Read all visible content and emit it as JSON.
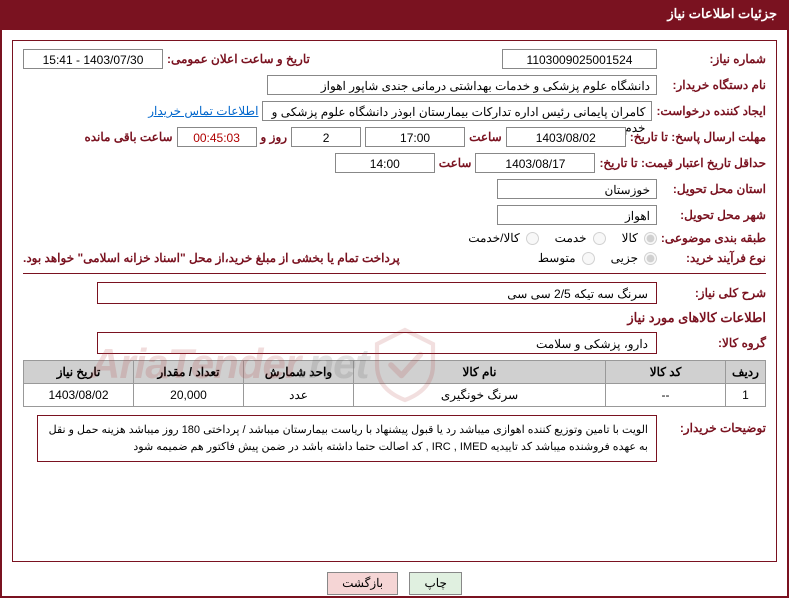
{
  "header": {
    "title": "جزئیات اطلاعات نیاز"
  },
  "labels": {
    "need_no": "شماره نیاز:",
    "announce_dt": "تاریخ و ساعت اعلان عمومی:",
    "buyer_org": "نام دستگاه خریدار:",
    "requester": "ایجاد کننده درخواست:",
    "reply_deadline": "مهلت ارسال پاسخ: تا تاریخ:",
    "time_lbl": "ساعت",
    "days_and": "روز و",
    "remaining": "ساعت باقی مانده",
    "validity": "حداقل تاریخ اعتبار قیمت: تا تاریخ:",
    "province": "استان محل تحویل:",
    "city": "شهر محل تحویل:",
    "subject_cat": "طبقه بندی موضوعی:",
    "buy_proc": "نوع فرآیند خرید:",
    "contact": "اطلاعات تماس خریدار",
    "overall_desc": "شرح کلی نیاز:",
    "items_section": "اطلاعات کالاهای مورد نیاز",
    "goods_group": "گروه کالا:",
    "buyer_notes": "توضیحات خریدار:"
  },
  "fields": {
    "need_no": "1103009025001524",
    "announce_dt": "1403/07/30 - 15:41",
    "buyer_org": "دانشگاه علوم پزشکی و خدمات بهداشتی درمانی جندی شاپور اهواز",
    "requester": "کامران پایمانی رئیس اداره تدارکات بیمارستان ابوذر  دانشگاه علوم پزشکی و خدم",
    "reply_date": "1403/08/02",
    "reply_time": "17:00",
    "remaining_days": "2",
    "remaining_time": "00:45:03",
    "validity_date": "1403/08/17",
    "validity_time": "14:00",
    "province": "خوزستان",
    "city": "اهواز",
    "overall_desc": "سرنگ سه تیکه 2/5 سی سی",
    "goods_group": "دارو، پزشکی و سلامت",
    "buyer_notes": "الویت با تامین وتوزیع کننده اهوازی  میباشد رد یا قبول پیشنهاد با ریاست بیمارستان میباشد / پرداختی 180 روز   میباشد هزینه حمل و نقل به عهده فروشنده میباشد   کد تاییدیه IRC , IMED , کد اصالت حتما داشته باشد در ضمن پیش فاکتور هم ضمیمه شود"
  },
  "radios": {
    "subject": {
      "options": [
        "کالا",
        "خدمت",
        "کالا/خدمت"
      ],
      "selected": 0
    },
    "process": {
      "options": [
        "جزیی",
        "متوسط"
      ],
      "selected": 0
    }
  },
  "payment_note": "پرداخت تمام یا بخشی از مبلغ خرید،از محل \"اسناد خزانه اسلامی\" خواهد بود.",
  "table": {
    "headers": [
      "ردیف",
      "کد کالا",
      "نام کالا",
      "واحد شمارش",
      "تعداد / مقدار",
      "تاریخ نیاز"
    ],
    "col_widths": [
      "40px",
      "120px",
      "auto",
      "110px",
      "110px",
      "110px"
    ],
    "rows": [
      [
        "1",
        "--",
        "سرنگ خونگیری",
        "عدد",
        "20,000",
        "1403/08/02"
      ]
    ]
  },
  "buttons": {
    "print": "چاپ",
    "back": "بازگشت"
  },
  "watermark": {
    "text1": "AriaTender",
    "text2": ".net"
  }
}
